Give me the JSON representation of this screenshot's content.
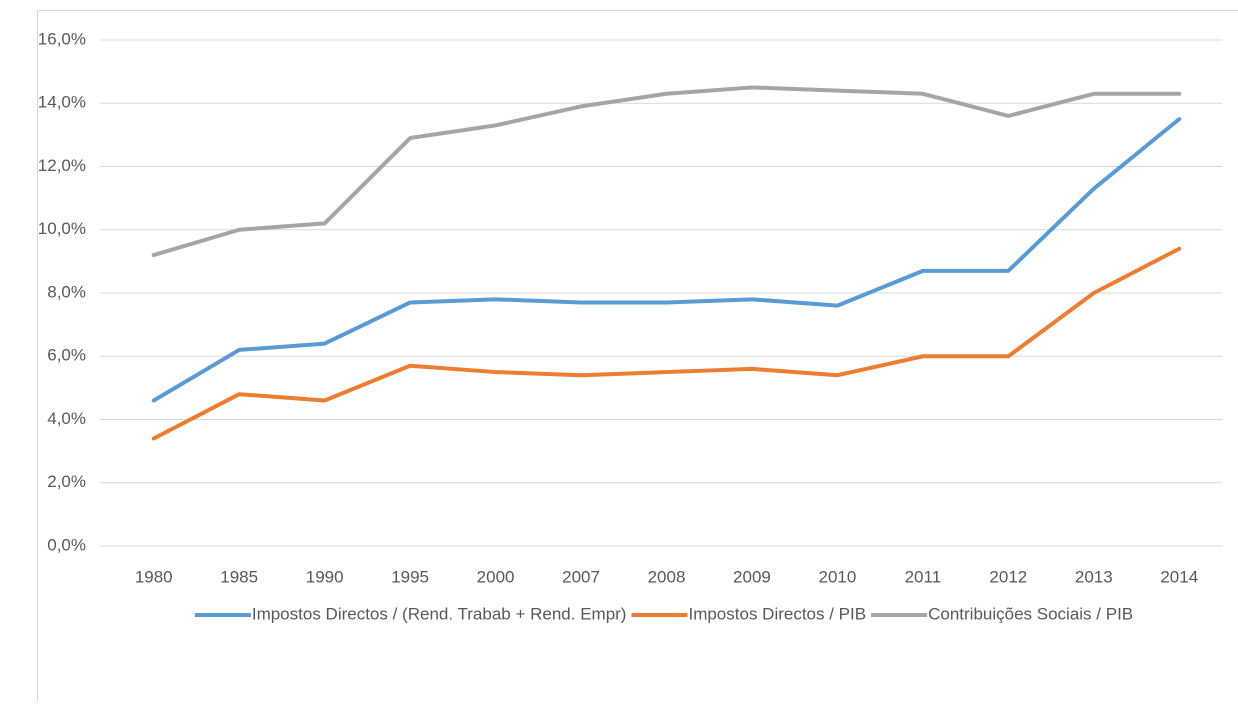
{
  "chart_data": {
    "type": "line",
    "categories": [
      "1980",
      "1985",
      "1990",
      "1995",
      "2000",
      "2007",
      "2008",
      "2009",
      "2010",
      "2011",
      "2012",
      "2013",
      "2014"
    ],
    "series": [
      {
        "name": "Impostos Directos / (Rend. Trabab + Rend. Empr)",
        "color": "#5b9bd5",
        "values": [
          4.6,
          6.2,
          6.4,
          7.7,
          7.8,
          7.7,
          7.7,
          7.8,
          7.6,
          8.7,
          8.7,
          11.3,
          13.5
        ]
      },
      {
        "name": "Impostos Directos / PIB",
        "color": "#ed7d31",
        "values": [
          3.4,
          4.8,
          4.6,
          5.7,
          5.5,
          5.4,
          5.5,
          5.6,
          5.4,
          6.0,
          6.0,
          8.0,
          9.4
        ]
      },
      {
        "name": "Contribuições Sociais / PIB",
        "color": "#a5a5a5",
        "values": [
          9.2,
          10.0,
          10.2,
          12.9,
          13.3,
          13.9,
          14.3,
          14.5,
          14.4,
          14.3,
          13.6,
          14.3,
          14.3
        ]
      }
    ],
    "ylim": [
      0,
      16
    ],
    "yticks": [
      {
        "value": 0,
        "label": "0,0%"
      },
      {
        "value": 2,
        "label": "2,0%"
      },
      {
        "value": 4,
        "label": "4,0%"
      },
      {
        "value": 6,
        "label": "6,0%"
      },
      {
        "value": 8,
        "label": "8,0%"
      },
      {
        "value": 10,
        "label": "10,0%"
      },
      {
        "value": 12,
        "label": "12,0%"
      },
      {
        "value": 14,
        "label": "14,0%"
      },
      {
        "value": 16,
        "label": "16,0%"
      }
    ],
    "grid": true,
    "legend": "bottom"
  }
}
